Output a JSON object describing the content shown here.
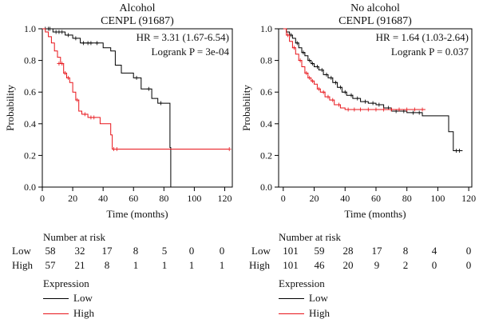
{
  "chart_data": [
    {
      "type": "line",
      "title": "Alcohol",
      "subtitle": "CENPL (91687)",
      "xlabel": "Time (months)",
      "ylabel": "Probability",
      "xlim": [
        0,
        125
      ],
      "ylim": [
        0,
        1.0
      ],
      "xticks": [
        0,
        20,
        40,
        60,
        80,
        100,
        120
      ],
      "yticks": [
        "0.0",
        "0.2",
        "0.4",
        "0.6",
        "0.8",
        "1.0"
      ],
      "hr_text": "HR = 3.31 (1.67-6.54)",
      "logrank_text": "Logrank P = 3e-04",
      "series": [
        {
          "name": "Low",
          "color": "#000000",
          "steps": [
            [
              0,
              1.0
            ],
            [
              7,
              0.98
            ],
            [
              15,
              0.96
            ],
            [
              20,
              0.94
            ],
            [
              25,
              0.91
            ],
            [
              34,
              0.91
            ],
            [
              40,
              0.88
            ],
            [
              45,
              0.86
            ],
            [
              48,
              0.77
            ],
            [
              52,
              0.72
            ],
            [
              60,
              0.69
            ],
            [
              65,
              0.62
            ],
            [
              72,
              0.56
            ],
            [
              76,
              0.53
            ],
            [
              82,
              0.53
            ],
            [
              84,
              0.25
            ],
            [
              84.5,
              0.0
            ]
          ],
          "censors": [
            [
              2,
              1.0
            ],
            [
              4,
              1.0
            ],
            [
              5,
              1.0
            ],
            [
              9,
              0.98
            ],
            [
              11,
              0.98
            ],
            [
              13,
              0.98
            ],
            [
              17,
              0.96
            ],
            [
              22,
              0.94
            ],
            [
              27,
              0.91
            ],
            [
              30,
              0.91
            ],
            [
              32,
              0.91
            ],
            [
              36,
              0.91
            ],
            [
              62,
              0.69
            ],
            [
              70,
              0.62
            ],
            [
              78,
              0.53
            ]
          ]
        },
        {
          "name": "High",
          "color": "#e8141a",
          "steps": [
            [
              0,
              1.0
            ],
            [
              2,
              0.98
            ],
            [
              4,
              0.95
            ],
            [
              6,
              0.91
            ],
            [
              8,
              0.86
            ],
            [
              10,
              0.82
            ],
            [
              12,
              0.78
            ],
            [
              14,
              0.72
            ],
            [
              16,
              0.69
            ],
            [
              18,
              0.66
            ],
            [
              20,
              0.6
            ],
            [
              22,
              0.55
            ],
            [
              24,
              0.48
            ],
            [
              26,
              0.46
            ],
            [
              30,
              0.44
            ],
            [
              38,
              0.4
            ],
            [
              44,
              0.4
            ],
            [
              45,
              0.33
            ],
            [
              46,
              0.24
            ],
            [
              123,
              0.24
            ]
          ],
          "censors": [
            [
              11,
              0.78
            ],
            [
              13,
              0.78
            ],
            [
              15,
              0.72
            ],
            [
              17,
              0.69
            ],
            [
              23,
              0.55
            ],
            [
              28,
              0.46
            ],
            [
              32,
              0.44
            ],
            [
              34,
              0.44
            ],
            [
              47,
              0.24
            ],
            [
              49,
              0.24
            ],
            [
              123,
              0.24
            ]
          ]
        }
      ],
      "risk_table": {
        "heading": "Number at risk",
        "rows": [
          {
            "label": "Low",
            "values": [
              "58",
              "32",
              "17",
              "8",
              "5",
              "0",
              "0"
            ]
          },
          {
            "label": "High",
            "values": [
              "57",
              "21",
              "8",
              "1",
              "1",
              "1",
              "1"
            ]
          }
        ]
      },
      "legend": {
        "title": "Expression",
        "items": [
          {
            "label": "Low",
            "color": "#000000"
          },
          {
            "label": "High",
            "color": "#e8141a"
          }
        ]
      }
    },
    {
      "type": "line",
      "title": "No alcohol",
      "subtitle": "CENPL (91687)",
      "xlabel": "Time (months)",
      "ylabel": "Probability",
      "xlim": [
        -3,
        122
      ],
      "ylim": [
        0,
        1.0
      ],
      "xticks": [
        0,
        20,
        40,
        60,
        80,
        100,
        120
      ],
      "yticks": [
        "0.0",
        "0.2",
        "0.4",
        "0.6",
        "0.8",
        "1.0"
      ],
      "hr_text": "HR = 1.64 (1.03-2.64)",
      "logrank_text": "Logrank P = 0.037",
      "series": [
        {
          "name": "Low",
          "color": "#000000",
          "steps": [
            [
              0,
              1.0
            ],
            [
              2,
              0.98
            ],
            [
              4,
              0.96
            ],
            [
              6,
              0.94
            ],
            [
              8,
              0.91
            ],
            [
              10,
              0.88
            ],
            [
              12,
              0.85
            ],
            [
              14,
              0.83
            ],
            [
              16,
              0.8
            ],
            [
              18,
              0.78
            ],
            [
              20,
              0.76
            ],
            [
              23,
              0.74
            ],
            [
              26,
              0.71
            ],
            [
              29,
              0.69
            ],
            [
              32,
              0.66
            ],
            [
              35,
              0.63
            ],
            [
              38,
              0.6
            ],
            [
              41,
              0.58
            ],
            [
              45,
              0.56
            ],
            [
              50,
              0.54
            ],
            [
              55,
              0.53
            ],
            [
              60,
              0.52
            ],
            [
              65,
              0.5
            ],
            [
              70,
              0.48
            ],
            [
              80,
              0.47
            ],
            [
              90,
              0.45
            ],
            [
              106,
              0.45
            ],
            [
              107,
              0.35
            ],
            [
              110,
              0.23
            ],
            [
              116,
              0.23
            ]
          ],
          "censors": [
            [
              5,
              0.96
            ],
            [
              9,
              0.91
            ],
            [
              13,
              0.85
            ],
            [
              17,
              0.8
            ],
            [
              19,
              0.78
            ],
            [
              22,
              0.76
            ],
            [
              25,
              0.74
            ],
            [
              28,
              0.71
            ],
            [
              31,
              0.69
            ],
            [
              34,
              0.66
            ],
            [
              37,
              0.63
            ],
            [
              40,
              0.6
            ],
            [
              44,
              0.58
            ],
            [
              48,
              0.56
            ],
            [
              53,
              0.54
            ],
            [
              58,
              0.53
            ],
            [
              62,
              0.52
            ],
            [
              68,
              0.5
            ],
            [
              73,
              0.48
            ],
            [
              78,
              0.48
            ],
            [
              84,
              0.47
            ],
            [
              88,
              0.47
            ],
            [
              112,
              0.23
            ],
            [
              114,
              0.23
            ]
          ]
        },
        {
          "name": "High",
          "color": "#e8141a",
          "steps": [
            [
              0,
              1.0
            ],
            [
              2,
              0.96
            ],
            [
              4,
              0.92
            ],
            [
              6,
              0.88
            ],
            [
              8,
              0.84
            ],
            [
              10,
              0.8
            ],
            [
              12,
              0.76
            ],
            [
              14,
              0.72
            ],
            [
              16,
              0.69
            ],
            [
              18,
              0.67
            ],
            [
              20,
              0.65
            ],
            [
              22,
              0.62
            ],
            [
              24,
              0.6
            ],
            [
              27,
              0.57
            ],
            [
              30,
              0.55
            ],
            [
              33,
              0.52
            ],
            [
              37,
              0.5
            ],
            [
              40,
              0.49
            ],
            [
              92,
              0.49
            ]
          ],
          "censors": [
            [
              3,
              0.96
            ],
            [
              7,
              0.88
            ],
            [
              11,
              0.8
            ],
            [
              15,
              0.72
            ],
            [
              17,
              0.69
            ],
            [
              19,
              0.67
            ],
            [
              23,
              0.62
            ],
            [
              26,
              0.6
            ],
            [
              29,
              0.57
            ],
            [
              32,
              0.55
            ],
            [
              36,
              0.52
            ],
            [
              42,
              0.49
            ],
            [
              46,
              0.49
            ],
            [
              50,
              0.49
            ],
            [
              55,
              0.49
            ],
            [
              60,
              0.49
            ],
            [
              65,
              0.49
            ],
            [
              70,
              0.49
            ],
            [
              75,
              0.49
            ],
            [
              80,
              0.49
            ],
            [
              85,
              0.49
            ],
            [
              90,
              0.49
            ]
          ]
        }
      ],
      "risk_table": {
        "heading": "Number at risk",
        "rows": [
          {
            "label": "Low",
            "values": [
              "101",
              "59",
              "28",
              "17",
              "8",
              "4",
              "0"
            ]
          },
          {
            "label": "High",
            "values": [
              "101",
              "46",
              "20",
              "9",
              "2",
              "0",
              "0"
            ]
          }
        ]
      },
      "legend": {
        "title": "Expression",
        "items": [
          {
            "label": "Low",
            "color": "#000000"
          },
          {
            "label": "High",
            "color": "#e8141a"
          }
        ]
      }
    }
  ]
}
